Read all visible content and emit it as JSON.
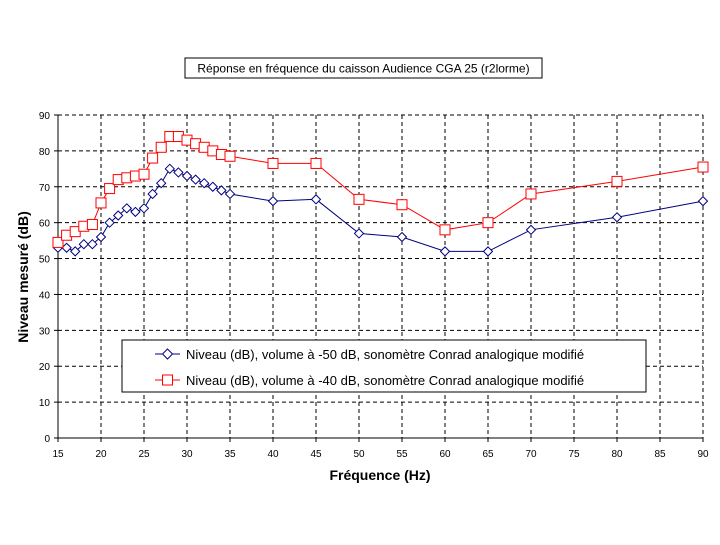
{
  "chart_data": {
    "type": "line",
    "title": "Réponse en fréquence du caisson Audience CGA 25 (r2lorme)",
    "xlabel": "Fréquence (Hz)",
    "ylabel": "Niveau mesuré (dB)",
    "xlim": [
      15,
      90
    ],
    "ylim": [
      0,
      90
    ],
    "x_ticks": [
      15,
      20,
      25,
      30,
      35,
      40,
      45,
      50,
      55,
      60,
      65,
      70,
      75,
      80,
      85,
      90
    ],
    "y_ticks": [
      0,
      10,
      20,
      30,
      40,
      50,
      60,
      70,
      80,
      90
    ],
    "grid": true,
    "legend_position": "center-bottom",
    "series": [
      {
        "name": "Niveau (dB), volume à -50 dB, sonomètre Conrad analogique modifié",
        "color": "#000080",
        "marker": "diamond",
        "x": [
          15,
          16,
          17,
          18,
          19,
          20,
          21,
          22,
          23,
          24,
          25,
          26,
          27,
          28,
          29,
          30,
          31,
          32,
          33,
          34,
          35,
          40,
          45,
          50,
          55,
          60,
          65,
          70,
          80,
          90
        ],
        "y": [
          53,
          53,
          52,
          54,
          54,
          56,
          60,
          62,
          64,
          63,
          64,
          68,
          71,
          75,
          74,
          73,
          72,
          71,
          70,
          69,
          68,
          66,
          66.5,
          57,
          56,
          52,
          52,
          58,
          61.5,
          66
        ]
      },
      {
        "name": "Niveau (dB), volume à -40 dB, sonomètre Conrad analogique modifié",
        "color": "#ff0000",
        "marker": "square",
        "x": [
          15,
          16,
          17,
          18,
          19,
          20,
          21,
          22,
          23,
          24,
          25,
          26,
          27,
          28,
          29,
          30,
          31,
          32,
          33,
          34,
          35,
          40,
          45,
          50,
          55,
          60,
          65,
          70,
          80,
          90
        ],
        "y": [
          54.5,
          56.5,
          57.5,
          59,
          59.5,
          65.5,
          69.5,
          72,
          72.5,
          73,
          73.5,
          78,
          81,
          84,
          84,
          83,
          82,
          81,
          80,
          79,
          78.5,
          76.5,
          76.5,
          66.5,
          65,
          58,
          60,
          68,
          71.5,
          75.5
        ]
      }
    ]
  }
}
